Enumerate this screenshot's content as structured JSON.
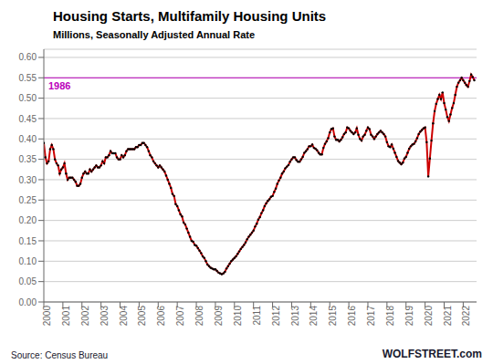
{
  "chart_data": {
    "type": "line",
    "title": "Housing Starts, Multifamily Housing Units",
    "subtitle": "Millions, Seasonally Adjusted Annual Rate",
    "annotations": [
      {
        "text": "1986",
        "y": 0.55,
        "color": "#bb00bb"
      },
      {
        "text": "Source: Census Bureau"
      },
      {
        "text": "WOLFSTREET.com"
      }
    ],
    "grid": true,
    "xlim": [
      2000,
      2022.7
    ],
    "xticks": [
      2000,
      2001,
      2002,
      2003,
      2004,
      2005,
      2006,
      2007,
      2008,
      2009,
      2010,
      2011,
      2012,
      2013,
      2014,
      2015,
      2016,
      2017,
      2018,
      2019,
      2020,
      2021,
      2022
    ],
    "ylim": [
      0.0,
      0.62
    ],
    "yticks": [
      {
        "value": 0.0,
        "label": "0.00"
      },
      {
        "value": 0.05,
        "label": "0.05"
      },
      {
        "value": 0.1,
        "label": "0.10"
      },
      {
        "value": 0.15,
        "label": "0.15"
      },
      {
        "value": 0.2,
        "label": "0.20"
      },
      {
        "value": 0.25,
        "label": "0.25"
      },
      {
        "value": 0.3,
        "label": "0.30"
      },
      {
        "value": 0.35,
        "label": "0.35"
      },
      {
        "value": 0.4,
        "label": "0.40"
      },
      {
        "value": 0.45,
        "label": "0.45"
      },
      {
        "value": 0.5,
        "label": "0.50"
      },
      {
        "value": 0.55,
        "label": "0.55"
      },
      {
        "value": 0.6,
        "label": "0.60"
      }
    ],
    "x": [
      2000.0,
      2000.083,
      2000.167,
      2000.25,
      2000.333,
      2000.417,
      2000.5,
      2000.583,
      2000.667,
      2000.75,
      2000.833,
      2000.917,
      2001.0,
      2001.083,
      2001.167,
      2001.25,
      2001.333,
      2001.417,
      2001.5,
      2001.583,
      2001.667,
      2001.75,
      2001.833,
      2001.917,
      2002.0,
      2002.083,
      2002.167,
      2002.25,
      2002.333,
      2002.417,
      2002.5,
      2002.583,
      2002.667,
      2002.75,
      2002.833,
      2002.917,
      2003.0,
      2003.083,
      2003.167,
      2003.25,
      2003.333,
      2003.417,
      2003.5,
      2003.583,
      2003.667,
      2003.75,
      2003.833,
      2003.917,
      2004.0,
      2004.083,
      2004.167,
      2004.25,
      2004.333,
      2004.417,
      2004.5,
      2004.583,
      2004.667,
      2004.75,
      2004.833,
      2004.917,
      2005.0,
      2005.083,
      2005.167,
      2005.25,
      2005.333,
      2005.417,
      2005.5,
      2005.583,
      2005.667,
      2005.75,
      2005.833,
      2005.917,
      2006.0,
      2006.083,
      2006.167,
      2006.25,
      2006.333,
      2006.417,
      2006.5,
      2006.583,
      2006.667,
      2006.75,
      2006.833,
      2006.917,
      2007.0,
      2007.083,
      2007.167,
      2007.25,
      2007.333,
      2007.417,
      2007.5,
      2007.583,
      2007.667,
      2007.75,
      2007.833,
      2007.917,
      2008.0,
      2008.083,
      2008.167,
      2008.25,
      2008.333,
      2008.417,
      2008.5,
      2008.583,
      2008.667,
      2008.75,
      2008.833,
      2008.917,
      2009.0,
      2009.083,
      2009.167,
      2009.25,
      2009.333,
      2009.417,
      2009.5,
      2009.583,
      2009.667,
      2009.75,
      2009.833,
      2009.917,
      2010.0,
      2010.083,
      2010.167,
      2010.25,
      2010.333,
      2010.417,
      2010.5,
      2010.583,
      2010.667,
      2010.75,
      2010.833,
      2010.917,
      2011.0,
      2011.083,
      2011.167,
      2011.25,
      2011.333,
      2011.417,
      2011.5,
      2011.583,
      2011.667,
      2011.75,
      2011.833,
      2011.917,
      2012.0,
      2012.083,
      2012.167,
      2012.25,
      2012.333,
      2012.417,
      2012.5,
      2012.583,
      2012.667,
      2012.75,
      2012.833,
      2012.917,
      2013.0,
      2013.083,
      2013.167,
      2013.25,
      2013.333,
      2013.417,
      2013.5,
      2013.583,
      2013.667,
      2013.75,
      2013.833,
      2013.917,
      2014.0,
      2014.083,
      2014.167,
      2014.25,
      2014.333,
      2014.417,
      2014.5,
      2014.583,
      2014.667,
      2014.75,
      2014.833,
      2014.917,
      2015.0,
      2015.083,
      2015.167,
      2015.25,
      2015.333,
      2015.417,
      2015.5,
      2015.583,
      2015.667,
      2015.75,
      2015.833,
      2015.917,
      2016.0,
      2016.083,
      2016.167,
      2016.25,
      2016.333,
      2016.417,
      2016.5,
      2016.583,
      2016.667,
      2016.75,
      2016.833,
      2016.917,
      2017.0,
      2017.083,
      2017.167,
      2017.25,
      2017.333,
      2017.417,
      2017.5,
      2017.583,
      2017.667,
      2017.75,
      2017.833,
      2017.917,
      2018.0,
      2018.083,
      2018.167,
      2018.25,
      2018.333,
      2018.417,
      2018.5,
      2018.583,
      2018.667,
      2018.75,
      2018.833,
      2018.917,
      2019.0,
      2019.083,
      2019.167,
      2019.25,
      2019.333,
      2019.417,
      2019.5,
      2019.583,
      2019.667,
      2019.75,
      2019.833,
      2019.917,
      2020.0,
      2020.083,
      2020.167,
      2020.25,
      2020.333,
      2020.417,
      2020.5,
      2020.583,
      2020.667,
      2020.75,
      2020.833,
      2020.917,
      2021.0,
      2021.083,
      2021.167,
      2021.25,
      2021.333,
      2021.417,
      2021.5,
      2021.583,
      2021.667,
      2021.75,
      2021.833,
      2021.917,
      2022.0,
      2022.083,
      2022.167,
      2022.25,
      2022.333,
      2022.417,
      2022.5,
      2022.583
    ],
    "series": [
      {
        "type": "line",
        "color": "#cc0000",
        "values": [
          0.39,
          0.355,
          0.34,
          0.345,
          0.375,
          0.385,
          0.375,
          0.35,
          0.34,
          0.335,
          0.315,
          0.325,
          0.33,
          0.34,
          0.315,
          0.3,
          0.305,
          0.305,
          0.305,
          0.3,
          0.295,
          0.285,
          0.285,
          0.29,
          0.305,
          0.315,
          0.32,
          0.315,
          0.315,
          0.325,
          0.32,
          0.325,
          0.33,
          0.335,
          0.33,
          0.33,
          0.335,
          0.345,
          0.34,
          0.355,
          0.355,
          0.36,
          0.37,
          0.365,
          0.365,
          0.365,
          0.355,
          0.35,
          0.35,
          0.36,
          0.355,
          0.36,
          0.37,
          0.375,
          0.375,
          0.375,
          0.375,
          0.375,
          0.38,
          0.38,
          0.385,
          0.385,
          0.39,
          0.39,
          0.385,
          0.38,
          0.37,
          0.36,
          0.355,
          0.345,
          0.34,
          0.335,
          0.33,
          0.335,
          0.33,
          0.325,
          0.32,
          0.31,
          0.3,
          0.29,
          0.28,
          0.265,
          0.26,
          0.24,
          0.235,
          0.225,
          0.215,
          0.21,
          0.195,
          0.19,
          0.18,
          0.17,
          0.16,
          0.15,
          0.148,
          0.14,
          0.138,
          0.132,
          0.126,
          0.12,
          0.112,
          0.108,
          0.1,
          0.092,
          0.088,
          0.084,
          0.082,
          0.08,
          0.08,
          0.076,
          0.072,
          0.07,
          0.068,
          0.07,
          0.074,
          0.082,
          0.088,
          0.094,
          0.1,
          0.104,
          0.108,
          0.112,
          0.118,
          0.124,
          0.13,
          0.135,
          0.14,
          0.146,
          0.154,
          0.16,
          0.165,
          0.17,
          0.175,
          0.185,
          0.192,
          0.202,
          0.208,
          0.218,
          0.225,
          0.235,
          0.242,
          0.248,
          0.252,
          0.258,
          0.26,
          0.27,
          0.278,
          0.29,
          0.298,
          0.305,
          0.315,
          0.32,
          0.328,
          0.332,
          0.336,
          0.344,
          0.35,
          0.355,
          0.355,
          0.348,
          0.344,
          0.344,
          0.35,
          0.356,
          0.366,
          0.37,
          0.375,
          0.382,
          0.382,
          0.386,
          0.378,
          0.376,
          0.372,
          0.366,
          0.362,
          0.362,
          0.378,
          0.388,
          0.394,
          0.402,
          0.416,
          0.424,
          0.426,
          0.406,
          0.398,
          0.398,
          0.394,
          0.398,
          0.404,
          0.412,
          0.416,
          0.428,
          0.426,
          0.42,
          0.416,
          0.412,
          0.416,
          0.426,
          0.41,
          0.4,
          0.396,
          0.406,
          0.41,
          0.42,
          0.428,
          0.424,
          0.41,
          0.406,
          0.4,
          0.406,
          0.412,
          0.416,
          0.42,
          0.416,
          0.412,
          0.406,
          0.392,
          0.382,
          0.38,
          0.386,
          0.376,
          0.366,
          0.356,
          0.346,
          0.342,
          0.338,
          0.342,
          0.352,
          0.356,
          0.366,
          0.376,
          0.382,
          0.386,
          0.388,
          0.394,
          0.402,
          0.412,
          0.418,
          0.422,
          0.426,
          0.428,
          0.392,
          0.308,
          0.352,
          0.396,
          0.438,
          0.468,
          0.486,
          0.498,
          0.508,
          0.498,
          0.514,
          0.488,
          0.472,
          0.454,
          0.444,
          0.46,
          0.476,
          0.488,
          0.508,
          0.528,
          0.538,
          0.544,
          0.55,
          0.544,
          0.538,
          0.532,
          0.528,
          0.542,
          0.558,
          0.552,
          0.544
        ]
      },
      {
        "type": "scatter",
        "color": "#000000",
        "marker": "circle",
        "values": [
          0.39,
          0.355,
          0.34,
          0.345,
          0.375,
          0.385,
          0.375,
          0.35,
          0.34,
          0.335,
          0.315,
          0.325,
          0.33,
          0.34,
          0.315,
          0.3,
          0.305,
          0.305,
          0.305,
          0.3,
          0.295,
          0.285,
          0.285,
          0.29,
          0.305,
          0.315,
          0.32,
          0.315,
          0.315,
          0.325,
          0.32,
          0.325,
          0.33,
          0.335,
          0.33,
          0.33,
          0.335,
          0.345,
          0.34,
          0.355,
          0.355,
          0.36,
          0.37,
          0.365,
          0.365,
          0.365,
          0.355,
          0.35,
          0.35,
          0.36,
          0.355,
          0.36,
          0.37,
          0.375,
          0.375,
          0.375,
          0.375,
          0.375,
          0.38,
          0.38,
          0.385,
          0.385,
          0.39,
          0.39,
          0.385,
          0.38,
          0.37,
          0.36,
          0.355,
          0.345,
          0.34,
          0.335,
          0.33,
          0.335,
          0.33,
          0.325,
          0.32,
          0.31,
          0.3,
          0.29,
          0.28,
          0.265,
          0.26,
          0.24,
          0.235,
          0.225,
          0.215,
          0.21,
          0.195,
          0.19,
          0.18,
          0.17,
          0.16,
          0.15,
          0.148,
          0.14,
          0.138,
          0.132,
          0.126,
          0.12,
          0.112,
          0.108,
          0.1,
          0.092,
          0.088,
          0.084,
          0.082,
          0.08,
          0.08,
          0.076,
          0.072,
          0.07,
          0.068,
          0.07,
          0.074,
          0.082,
          0.088,
          0.094,
          0.1,
          0.104,
          0.108,
          0.112,
          0.118,
          0.124,
          0.13,
          0.135,
          0.14,
          0.146,
          0.154,
          0.16,
          0.165,
          0.17,
          0.175,
          0.185,
          0.192,
          0.202,
          0.208,
          0.218,
          0.225,
          0.235,
          0.242,
          0.248,
          0.252,
          0.258,
          0.26,
          0.27,
          0.278,
          0.29,
          0.298,
          0.305,
          0.315,
          0.32,
          0.328,
          0.332,
          0.336,
          0.344,
          0.35,
          0.355,
          0.355,
          0.348,
          0.344,
          0.344,
          0.35,
          0.356,
          0.366,
          0.37,
          0.375,
          0.382,
          0.382,
          0.386,
          0.378,
          0.376,
          0.372,
          0.366,
          0.362,
          0.362,
          0.378,
          0.388,
          0.394,
          0.402,
          0.416,
          0.424,
          0.426,
          0.406,
          0.398,
          0.398,
          0.394,
          0.398,
          0.404,
          0.412,
          0.416,
          0.428,
          0.426,
          0.42,
          0.416,
          0.412,
          0.416,
          0.426,
          0.41,
          0.4,
          0.396,
          0.406,
          0.41,
          0.42,
          0.428,
          0.424,
          0.41,
          0.406,
          0.4,
          0.406,
          0.412,
          0.416,
          0.42,
          0.416,
          0.412,
          0.406,
          0.392,
          0.382,
          0.38,
          0.386,
          0.376,
          0.366,
          0.356,
          0.346,
          0.342,
          0.338,
          0.342,
          0.352,
          0.356,
          0.366,
          0.376,
          0.382,
          0.386,
          0.388,
          0.394,
          0.402,
          0.412,
          0.418,
          0.422,
          0.426,
          0.428,
          0.392,
          0.308,
          0.352,
          0.396,
          0.438,
          0.468,
          0.486,
          0.498,
          0.508,
          0.498,
          0.514,
          0.488,
          0.472,
          0.454,
          0.444,
          0.46,
          0.476,
          0.488,
          0.508,
          0.528,
          0.538,
          0.544,
          0.55,
          0.544,
          0.538,
          0.532,
          0.528,
          0.542,
          0.558,
          0.552,
          0.544
        ]
      }
    ]
  }
}
